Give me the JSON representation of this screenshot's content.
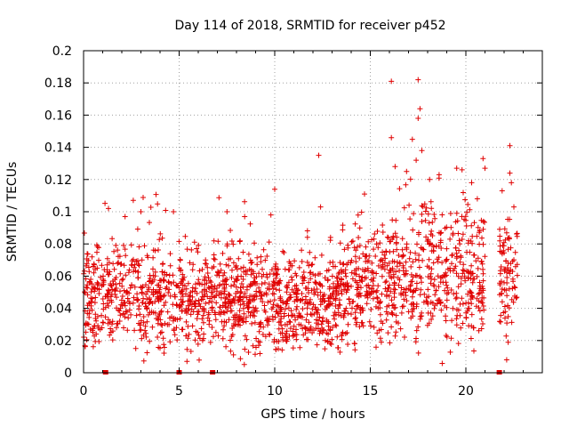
{
  "chart_data": {
    "type": "scatter",
    "title": "Day 114 of 2018, SRMTID for receiver p452",
    "xlabel": "GPS time / hours",
    "ylabel": "SRMTID / TECUs",
    "xlim": [
      0,
      24
    ],
    "ylim": [
      0,
      0.2
    ],
    "grid": true,
    "marker": "+",
    "color": "#e00000",
    "x_ticks": [
      {
        "value": 0,
        "label": "0"
      },
      {
        "value": 5,
        "label": "5"
      },
      {
        "value": 10,
        "label": "10"
      },
      {
        "value": 15,
        "label": "15"
      },
      {
        "value": 20,
        "label": "20"
      }
    ],
    "y_ticks": [
      {
        "value": 0,
        "label": "0"
      },
      {
        "value": 0.02,
        "label": "0.02"
      },
      {
        "value": 0.04,
        "label": "0.04"
      },
      {
        "value": 0.06,
        "label": "0.06"
      },
      {
        "value": 0.08,
        "label": "0.08"
      },
      {
        "value": 0.1,
        "label": "0.1"
      },
      {
        "value": 0.12,
        "label": "0.12"
      },
      {
        "value": 0.14,
        "label": "0.14"
      },
      {
        "value": 0.16,
        "label": "0.16"
      },
      {
        "value": 0.18,
        "label": "0.18"
      },
      {
        "value": 0.2,
        "label": "0.2"
      }
    ],
    "zero_markers_x": [
      1.15,
      5.0,
      6.75,
      21.75
    ],
    "trend": [
      {
        "x": 0,
        "y": 0.045,
        "spread": 0.014
      },
      {
        "x": 2,
        "y": 0.047,
        "spread": 0.015
      },
      {
        "x": 4,
        "y": 0.05,
        "spread": 0.017
      },
      {
        "x": 6,
        "y": 0.047,
        "spread": 0.015
      },
      {
        "x": 8,
        "y": 0.048,
        "spread": 0.015
      },
      {
        "x": 10,
        "y": 0.04,
        "spread": 0.014
      },
      {
        "x": 12,
        "y": 0.042,
        "spread": 0.014
      },
      {
        "x": 14,
        "y": 0.048,
        "spread": 0.016
      },
      {
        "x": 16,
        "y": 0.055,
        "spread": 0.019
      },
      {
        "x": 18,
        "y": 0.065,
        "spread": 0.022
      },
      {
        "x": 20,
        "y": 0.06,
        "spread": 0.02
      },
      {
        "x": 21,
        "y": 0.06,
        "spread": 0.02
      }
    ],
    "gap_hours": [
      21.0,
      21.75
    ],
    "end_hour": 22.7,
    "outliers": [
      {
        "x": 16.1,
        "y": 0.181
      },
      {
        "x": 17.5,
        "y": 0.182
      },
      {
        "x": 17.6,
        "y": 0.164
      },
      {
        "x": 17.5,
        "y": 0.158
      },
      {
        "x": 17.2,
        "y": 0.145
      },
      {
        "x": 16.1,
        "y": 0.146
      },
      {
        "x": 17.7,
        "y": 0.138
      },
      {
        "x": 22.3,
        "y": 0.141
      },
      {
        "x": 12.3,
        "y": 0.135
      },
      {
        "x": 20.9,
        "y": 0.133
      },
      {
        "x": 21.0,
        "y": 0.127
      },
      {
        "x": 19.8,
        "y": 0.126
      },
      {
        "x": 18.6,
        "y": 0.123
      },
      {
        "x": 22.3,
        "y": 0.124
      },
      {
        "x": 10.0,
        "y": 0.114
      },
      {
        "x": 2.6,
        "y": 0.107
      },
      {
        "x": 16.9,
        "y": 0.125
      },
      {
        "x": 17.4,
        "y": 0.132
      },
      {
        "x": 16.3,
        "y": 0.128
      },
      {
        "x": 20.3,
        "y": 0.118
      },
      {
        "x": 21.9,
        "y": 0.113
      },
      {
        "x": 12.4,
        "y": 0.103
      },
      {
        "x": 14.7,
        "y": 0.111
      },
      {
        "x": 4.7,
        "y": 0.1
      },
      {
        "x": 7.5,
        "y": 0.1
      },
      {
        "x": 1.3,
        "y": 0.102
      },
      {
        "x": 3.0,
        "y": 0.1
      },
      {
        "x": 9.8,
        "y": 0.098
      },
      {
        "x": 18.1,
        "y": 0.12
      },
      {
        "x": 20.6,
        "y": 0.108
      }
    ]
  }
}
